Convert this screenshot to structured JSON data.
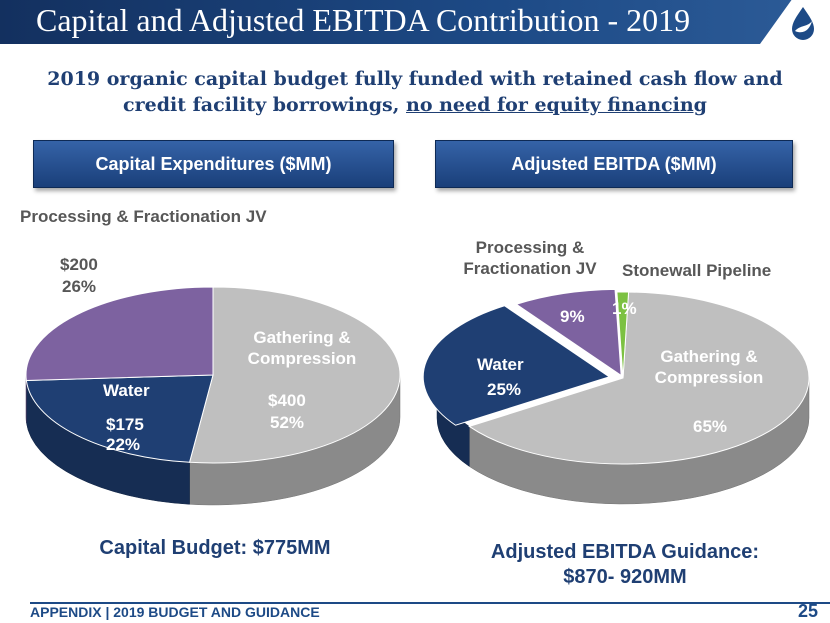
{
  "title": "Capital and Adjusted EBITDA Contribution - 2019",
  "subtitle_line1": "2019 organic capital budget fully funded with retained cash flow and",
  "subtitle_line2_prefix": "credit facility borrowings,",
  "subtitle_line2_underlined": "no need for equity financing",
  "left_header": "Capital Expenditures ($MM)",
  "right_header": "Adjusted EBITDA ($MM)",
  "left_caption": "Capital Budget: $775MM",
  "right_caption_line1": "Adjusted EBITDA Guidance:",
  "right_caption_line2": "$870- 920MM",
  "footer": "APPENDIX | 2019 BUDGET AND GUIDANCE",
  "page_number": "25",
  "colors": {
    "gathering": "#bfbfbf",
    "water": "#1f3f73",
    "processing": "#7d62a0",
    "stonewall": "#7cc142",
    "navy": "#1f3f73"
  },
  "chart_data": [
    {
      "type": "pie",
      "title": "Capital Expenditures ($MM)",
      "slices": [
        {
          "name": "Gathering & Compression",
          "value": 400,
          "value_label": "$400",
          "percent": 52
        },
        {
          "name": "Water",
          "value": 175,
          "value_label": "$175",
          "percent": 22
        },
        {
          "name": "Processing & Fractionation JV",
          "value": 200,
          "value_label": "$200",
          "percent": 26
        }
      ]
    },
    {
      "type": "pie",
      "title": "Adjusted EBITDA ($MM)",
      "slices": [
        {
          "name": "Gathering & Compression",
          "percent": 65
        },
        {
          "name": "Water",
          "percent": 25
        },
        {
          "name": "Processing & Fractionation JV",
          "percent": 9
        },
        {
          "name": "Stonewall Pipeline",
          "percent": 1
        }
      ]
    }
  ]
}
